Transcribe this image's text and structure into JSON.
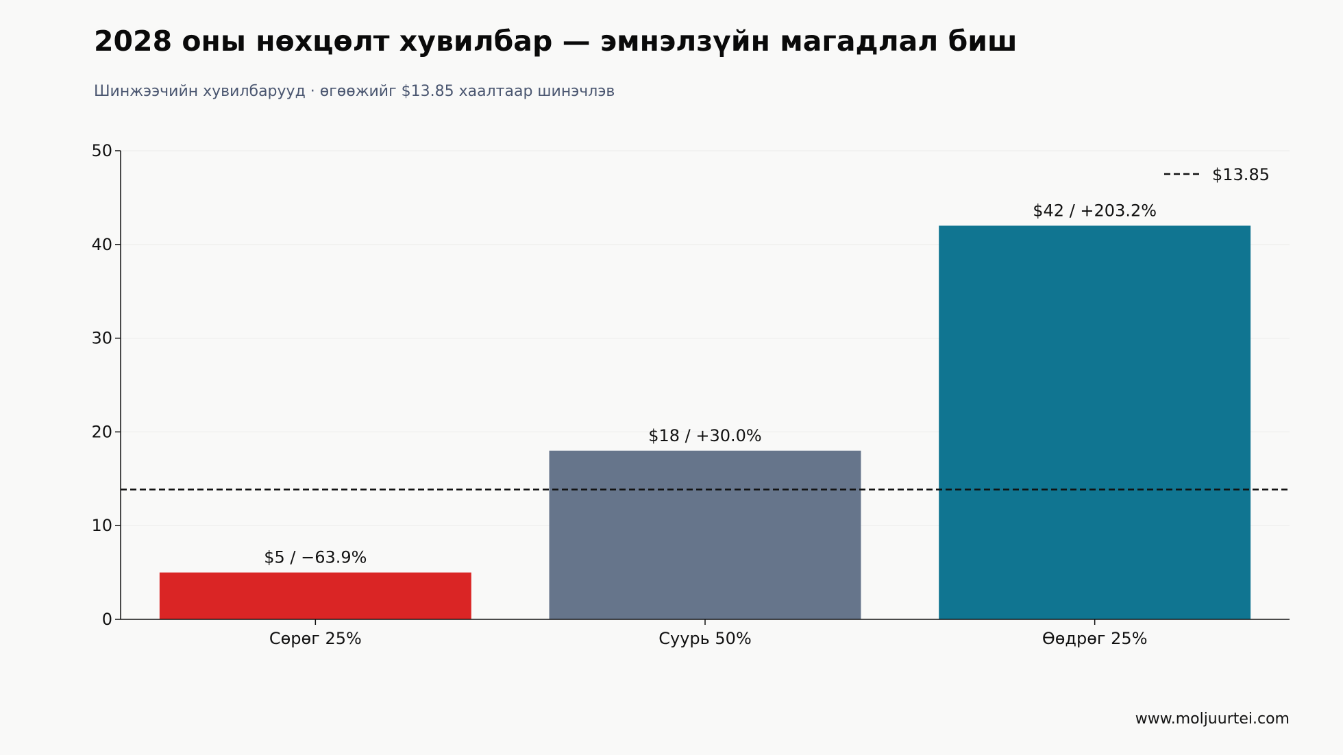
{
  "header": {
    "title": "2028 оны нөхцөлт хувилбар — эмнэлзүйн магадлал биш",
    "subtitle": "Шинжээчийн хувилбарууд · өгөөжийг $13.85 хаалтаар шинэчлэв"
  },
  "footer": {
    "source": "www.moljuurtei.com"
  },
  "chart_data": {
    "type": "bar",
    "categories": [
      "Сөрөг 25%",
      "Суурь 50%",
      "Өөдрөг 25%"
    ],
    "values": [
      5,
      18,
      42
    ],
    "data_labels": [
      "$5 / −63.9%",
      "$18 / +30.0%",
      "$42 / +203.2%"
    ],
    "colors": [
      "#da2525",
      "#66758b",
      "#107591"
    ],
    "ylim": [
      0,
      50
    ],
    "yticks": [
      0,
      10,
      20,
      30,
      40,
      50
    ],
    "reference_line": {
      "value": 13.85,
      "label": "$13.85",
      "style": "dashed",
      "color": "#111111"
    },
    "legend": {
      "position": "top-right",
      "entries": [
        "$13.85"
      ]
    },
    "grid": true,
    "xlabel": "",
    "ylabel": ""
  }
}
